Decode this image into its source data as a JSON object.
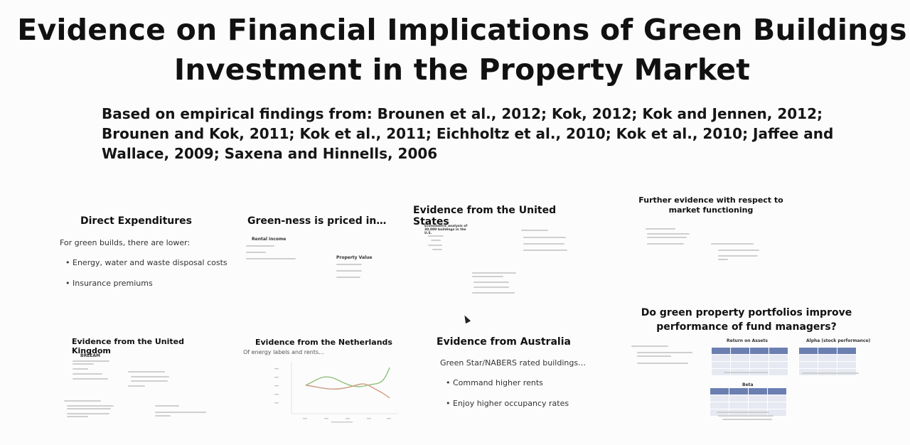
{
  "slide": {
    "title": "Evidence on Financial Implications of Green Buildings Investment in the Property Market",
    "subtitle": "Based on empirical findings from: Brounen et al., 2012; Kok, 2012; Kok and Jennen, 2012; Brounen and Kok, 2011; Kok et al., 2011; Eichholtz et al., 2010; Kok et al., 2010; Jaffee and Wallace, 2009; Saxena and Hinnells, 2006"
  },
  "tiles": {
    "direct": {
      "title": "Direct Expenditures",
      "intro": "For green builds, there are lower:",
      "bullets": [
        "Energy, water and waste disposal costs",
        "Insurance premiums"
      ]
    },
    "priced": {
      "title": "Green-ness is priced in…",
      "rental": "Rental income",
      "property": "Property Value"
    },
    "us": {
      "title": "Evidence from the United States",
      "sub": "Econometric analysis of 30,000 buildings in the U.S."
    },
    "further": {
      "title": "Further evidence with respect to market functioning"
    },
    "uk": {
      "title": "Evidence from the United Kingdom",
      "sub": "BREEAM"
    },
    "nl": {
      "title": "Evidence from the Netherlands",
      "sub": "Of energy labels and rents…"
    },
    "au": {
      "title": "Evidence from Australia",
      "intro": "Green Star/NABERS rated buildings…",
      "bullets": [
        "Command higher rents",
        "Enjoy higher occupancy rates"
      ]
    },
    "fund": {
      "title": "Do green property portfolios improve performance of fund managers?",
      "roa": "Return on Assets",
      "alpha": "Alpha (stock performance)",
      "beta": "Beta"
    }
  }
}
